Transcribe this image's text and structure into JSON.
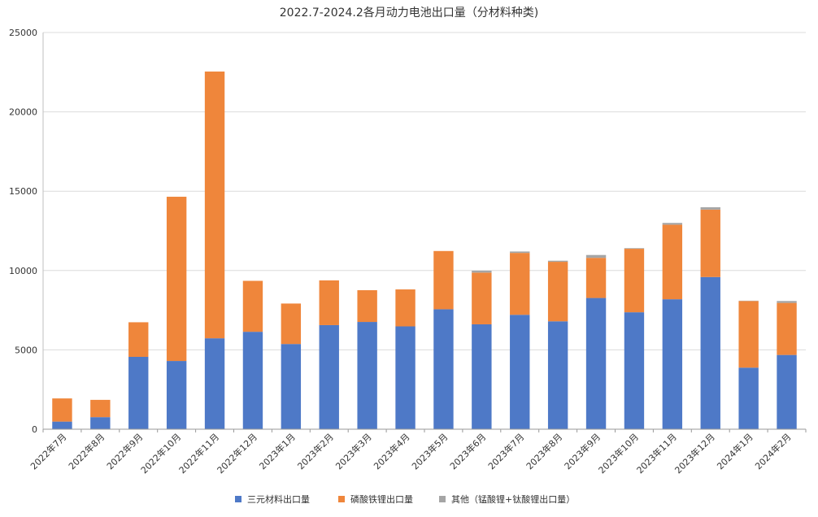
{
  "chart_data": {
    "type": "bar",
    "stacked": true,
    "title": "2022.7-2024.2各月动力电池出口量（分材料种类)",
    "xlabel": "",
    "ylabel": "",
    "ylim": [
      0,
      25000
    ],
    "yticks": [
      0,
      5000,
      10000,
      15000,
      20000,
      25000
    ],
    "grid": true,
    "legend_position": "bottom-center",
    "categories": [
      "2022年7月",
      "2022年8月",
      "2022年9月",
      "2022年10月",
      "2022年11月",
      "2022年12月",
      "2023年1月",
      "2023年2月",
      "2023年3月",
      "2023年4月",
      "2023年5月",
      "2023年6月",
      "2023年7月",
      "2023年8月",
      "2023年9月",
      "2023年10月",
      "2023年11月",
      "2023年12月",
      "2024年1月",
      "2024年2月"
    ],
    "series": [
      {
        "name": "三元材料出口量",
        "color": "#4e79c7",
        "values": [
          480,
          760,
          4560,
          4300,
          5730,
          6140,
          5370,
          6560,
          6760,
          6480,
          7560,
          6610,
          7210,
          6800,
          8270,
          7370,
          8190,
          9590,
          3880,
          4680
        ]
      },
      {
        "name": "磷酸铁锂出口量",
        "color": "#ef863b",
        "values": [
          1460,
          1090,
          2180,
          10350,
          16810,
          3210,
          2550,
          2820,
          2000,
          2330,
          3670,
          3260,
          3900,
          3750,
          2530,
          4000,
          4700,
          4250,
          4200,
          3280
        ]
      },
      {
        "name": "其他（锰酸锂+钛酸锂出口量）",
        "color": "#a5a5a5",
        "values": [
          0,
          0,
          0,
          0,
          0,
          0,
          0,
          0,
          0,
          0,
          0,
          120,
          90,
          70,
          180,
          40,
          110,
          150,
          20,
          120
        ]
      }
    ]
  }
}
